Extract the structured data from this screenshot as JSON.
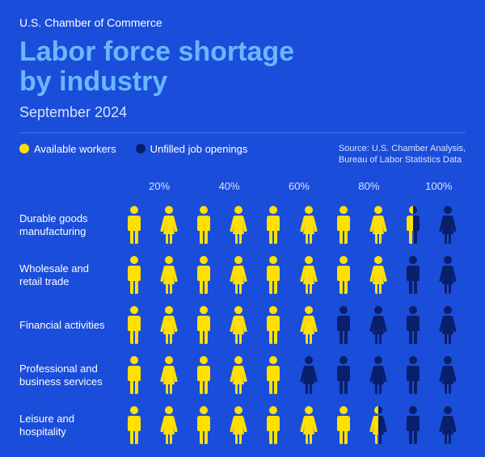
{
  "header": {
    "org": "U.S. Chamber of Commerce",
    "title_line1": "Labor force shortage",
    "title_line2": "by industry",
    "subtitle": "September 2024"
  },
  "legend": {
    "available": {
      "label": "Available workers",
      "color": "#ffe000"
    },
    "unfilled": {
      "label": "Unfilled job openings",
      "color": "#0a1f6b"
    }
  },
  "source": {
    "line1": "Source: U.S. Chamber Analysis,",
    "line2": "Bureau of Labor Statistics Data"
  },
  "colors": {
    "background": "#1a4dd9",
    "title": "#6bb7ff",
    "text": "#ffffff",
    "muted": "#d6e3ff",
    "rule": "#4a76e6"
  },
  "axis": {
    "ticks": [
      "20%",
      "40%",
      "60%",
      "80%",
      "100%"
    ]
  },
  "chart": {
    "type": "pictogram",
    "icons_per_row": 10,
    "icon_pattern": [
      "male",
      "female",
      "male",
      "female",
      "male",
      "female",
      "male",
      "female",
      "male",
      "female"
    ],
    "rows": [
      {
        "label": "Durable goods manufacturing",
        "available_pct": 85
      },
      {
        "label": "Wholesale and retail trade",
        "available_pct": 80
      },
      {
        "label": "Financial activities",
        "available_pct": 60
      },
      {
        "label": "Professional and business services",
        "available_pct": 50
      },
      {
        "label": "Leisure and hospitality",
        "available_pct": 75
      }
    ]
  }
}
